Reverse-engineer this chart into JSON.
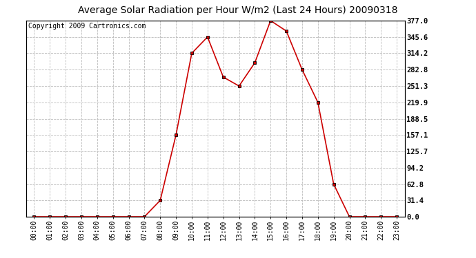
{
  "title": "Average Solar Radiation per Hour W/m2 (Last 24 Hours) 20090318",
  "copyright": "Copyright 2009 Cartronics.com",
  "hours": [
    "00:00",
    "01:00",
    "02:00",
    "03:00",
    "04:00",
    "05:00",
    "06:00",
    "07:00",
    "08:00",
    "09:00",
    "10:00",
    "11:00",
    "12:00",
    "13:00",
    "14:00",
    "15:00",
    "16:00",
    "17:00",
    "18:00",
    "19:00",
    "20:00",
    "21:00",
    "22:00",
    "23:00"
  ],
  "values": [
    0,
    0,
    0,
    0,
    0,
    0,
    0,
    0,
    31.4,
    157.1,
    314.2,
    345.6,
    268.5,
    251.3,
    296.0,
    377.0,
    357.0,
    282.8,
    219.9,
    62.8,
    0,
    0,
    0,
    0
  ],
  "line_color": "#cc0000",
  "marker_color": "#000000",
  "bg_color": "#ffffff",
  "plot_bg_color": "#ffffff",
  "grid_color": "#bbbbbb",
  "border_color": "#000000",
  "yticks": [
    0.0,
    31.4,
    62.8,
    94.2,
    125.7,
    157.1,
    188.5,
    219.9,
    251.3,
    282.8,
    314.2,
    345.6,
    377.0
  ],
  "ymax": 377.0,
  "ymin": 0.0,
  "title_fontsize": 10,
  "copyright_fontsize": 7,
  "tick_fontsize": 7,
  "ytick_fontsize": 7.5
}
